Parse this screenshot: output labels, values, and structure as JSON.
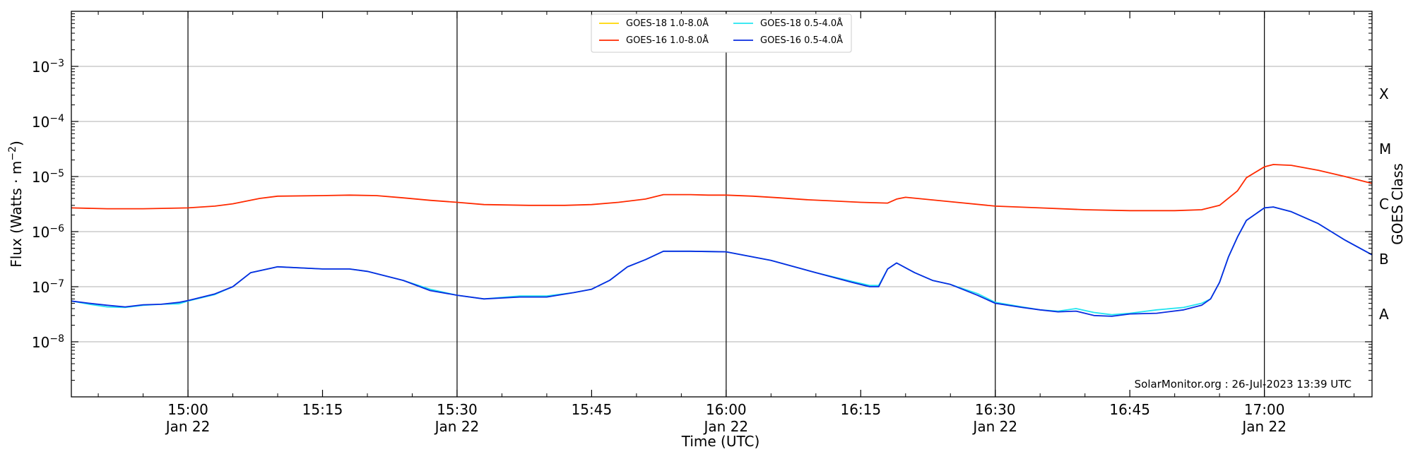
{
  "chart_data": {
    "type": "line",
    "xlabel": "Time (UTC)",
    "ylabel": "Flux (Watts · m^-2)",
    "right_label": "GOES Class",
    "xlim": [
      "14:47",
      "17:12"
    ],
    "ylim": [
      1e-09,
      0.01
    ],
    "yscale": "log",
    "grid": "horizontal",
    "legend_position": "top-center",
    "x_ticks": [
      {
        "time": "15:00",
        "date": "Jan 22"
      },
      {
        "time": "15:15",
        "date": ""
      },
      {
        "time": "15:30",
        "date": "Jan 22"
      },
      {
        "time": "15:45",
        "date": ""
      },
      {
        "time": "16:00",
        "date": "Jan 22"
      },
      {
        "time": "16:15",
        "date": ""
      },
      {
        "time": "16:30",
        "date": "Jan 22"
      },
      {
        "time": "16:45",
        "date": ""
      },
      {
        "time": "17:00",
        "date": "Jan 22"
      }
    ],
    "vertical_lines": [
      "15:00",
      "15:30",
      "16:00",
      "16:30",
      "17:00"
    ],
    "y_ticks": [
      {
        "value": 1e-08,
        "base": "10",
        "exp": "−8"
      },
      {
        "value": 1e-07,
        "base": "10",
        "exp": "−7"
      },
      {
        "value": 1e-06,
        "base": "10",
        "exp": "−6"
      },
      {
        "value": 1e-05,
        "base": "10",
        "exp": "−5"
      },
      {
        "value": 0.0001,
        "base": "10",
        "exp": "−4"
      },
      {
        "value": 0.001,
        "base": "10",
        "exp": "−3"
      }
    ],
    "class_labels": [
      {
        "label": "A",
        "value": 3.16e-08
      },
      {
        "label": "B",
        "value": 3.16e-07
      },
      {
        "label": "C",
        "value": 3.16e-06
      },
      {
        "label": "M",
        "value": 3.16e-05
      },
      {
        "label": "X",
        "value": 0.000316
      }
    ],
    "annotation": "SolarMonitor.org : 26-Jul-2023 13:39 UTC",
    "series": [
      {
        "name": "GOES-18 1.0-8.0Å",
        "color": "#FFD700",
        "points": []
      },
      {
        "name": "GOES-16 1.0-8.0Å",
        "color": "#FF2A00",
        "points": [
          [
            "14:47",
            2.7e-06
          ],
          [
            "14:51",
            2.6e-06
          ],
          [
            "14:55",
            2.6e-06
          ],
          [
            "15:00",
            2.7e-06
          ],
          [
            "15:03",
            2.9e-06
          ],
          [
            "15:05",
            3.2e-06
          ],
          [
            "15:08",
            4e-06
          ],
          [
            "15:10",
            4.4e-06
          ],
          [
            "15:15",
            4.5e-06
          ],
          [
            "15:18",
            4.6e-06
          ],
          [
            "15:21",
            4.5e-06
          ],
          [
            "15:24",
            4.1e-06
          ],
          [
            "15:27",
            3.7e-06
          ],
          [
            "15:30",
            3.4e-06
          ],
          [
            "15:33",
            3.1e-06
          ],
          [
            "15:38",
            3e-06
          ],
          [
            "15:42",
            3e-06
          ],
          [
            "15:45",
            3.1e-06
          ],
          [
            "15:48",
            3.4e-06
          ],
          [
            "15:51",
            3.9e-06
          ],
          [
            "15:53",
            4.7e-06
          ],
          [
            "15:56",
            4.7e-06
          ],
          [
            "15:58",
            4.6e-06
          ],
          [
            "16:00",
            4.6e-06
          ],
          [
            "16:03",
            4.4e-06
          ],
          [
            "16:06",
            4.1e-06
          ],
          [
            "16:09",
            3.8e-06
          ],
          [
            "16:12",
            3.6e-06
          ],
          [
            "16:15",
            3.4e-06
          ],
          [
            "16:18",
            3.3e-06
          ],
          [
            "16:19",
            3.9e-06
          ],
          [
            "16:20",
            4.2e-06
          ],
          [
            "16:22",
            3.9e-06
          ],
          [
            "16:25",
            3.5e-06
          ],
          [
            "16:30",
            2.9e-06
          ],
          [
            "16:35",
            2.7e-06
          ],
          [
            "16:40",
            2.5e-06
          ],
          [
            "16:45",
            2.4e-06
          ],
          [
            "16:50",
            2.4e-06
          ],
          [
            "16:53",
            2.5e-06
          ],
          [
            "16:55",
            3e-06
          ],
          [
            "16:57",
            5.5e-06
          ],
          [
            "16:58",
            9.5e-06
          ],
          [
            "17:00",
            1.5e-05
          ],
          [
            "17:01",
            1.65e-05
          ],
          [
            "17:03",
            1.6e-05
          ],
          [
            "17:06",
            1.3e-05
          ],
          [
            "17:09",
            1e-05
          ],
          [
            "17:12",
            7.5e-06
          ]
        ]
      },
      {
        "name": "GOES-18 0.5-4.0Å",
        "color": "#22E4F0",
        "points": [
          [
            "14:47",
            5.5e-08
          ],
          [
            "14:49",
            4.8e-08
          ],
          [
            "14:51",
            4.3e-08
          ],
          [
            "14:53",
            4.2e-08
          ],
          [
            "14:55",
            4.6e-08
          ],
          [
            "14:57",
            4.8e-08
          ],
          [
            "14:59",
            4.9e-08
          ],
          [
            "15:00",
            5.5e-08
          ],
          [
            "15:03",
            7.2e-08
          ],
          [
            "15:05",
            1e-07
          ],
          [
            "15:07",
            1.8e-07
          ],
          [
            "15:10",
            2.3e-07
          ],
          [
            "15:15",
            2.1e-07
          ],
          [
            "15:18",
            2.1e-07
          ],
          [
            "15:20",
            1.9e-07
          ],
          [
            "15:24",
            1.3e-07
          ],
          [
            "15:27",
            9e-08
          ],
          [
            "15:30",
            7e-08
          ],
          [
            "15:33",
            6e-08
          ],
          [
            "15:37",
            6.8e-08
          ],
          [
            "15:40",
            6.8e-08
          ],
          [
            "15:43",
            7.8e-08
          ],
          [
            "15:45",
            9e-08
          ],
          [
            "15:47",
            1.3e-07
          ],
          [
            "15:49",
            2.3e-07
          ],
          [
            "15:51",
            3.1e-07
          ],
          [
            "15:53",
            4.4e-07
          ],
          [
            "15:56",
            4.4e-07
          ],
          [
            "16:00",
            4.3e-07
          ],
          [
            "16:05",
            3e-07
          ],
          [
            "16:10",
            1.8e-07
          ],
          [
            "16:14",
            1.25e-07
          ],
          [
            "16:16",
            1.05e-07
          ],
          [
            "16:17",
            1.05e-07
          ],
          [
            "16:18",
            2.1e-07
          ],
          [
            "16:19",
            2.7e-07
          ],
          [
            "16:21",
            1.8e-07
          ],
          [
            "16:23",
            1.3e-07
          ],
          [
            "16:25",
            1.1e-07
          ],
          [
            "16:28",
            7.5e-08
          ],
          [
            "16:30",
            5.2e-08
          ],
          [
            "16:33",
            4.3e-08
          ],
          [
            "16:35",
            3.8e-08
          ],
          [
            "16:37",
            3.6e-08
          ],
          [
            "16:39",
            4e-08
          ],
          [
            "16:41",
            3.4e-08
          ],
          [
            "16:43",
            3.1e-08
          ],
          [
            "16:45",
            3.3e-08
          ],
          [
            "16:48",
            3.8e-08
          ],
          [
            "16:51",
            4.2e-08
          ],
          [
            "16:53",
            5e-08
          ],
          [
            "16:54",
            6e-08
          ],
          [
            "16:55",
            1.2e-07
          ],
          [
            "16:56",
            3.5e-07
          ],
          [
            "16:57",
            8e-07
          ],
          [
            "16:58",
            1.6e-06
          ],
          [
            "17:00",
            2.7e-06
          ],
          [
            "17:01",
            2.8e-06
          ],
          [
            "17:03",
            2.3e-06
          ],
          [
            "17:06",
            1.4e-06
          ],
          [
            "17:09",
            7e-07
          ],
          [
            "17:12",
            3.8e-07
          ]
        ]
      },
      {
        "name": "GOES-16 0.5-4.0Å",
        "color": "#0A2BE0",
        "points": [
          [
            "14:47",
            5.5e-08
          ],
          [
            "14:49",
            5e-08
          ],
          [
            "14:51",
            4.6e-08
          ],
          [
            "14:53",
            4.3e-08
          ],
          [
            "14:55",
            4.7e-08
          ],
          [
            "14:57",
            4.8e-08
          ],
          [
            "14:59",
            5.2e-08
          ],
          [
            "15:00",
            5.6e-08
          ],
          [
            "15:03",
            7.4e-08
          ],
          [
            "15:05",
            1e-07
          ],
          [
            "15:07",
            1.8e-07
          ],
          [
            "15:10",
            2.3e-07
          ],
          [
            "15:15",
            2.1e-07
          ],
          [
            "15:18",
            2.1e-07
          ],
          [
            "15:20",
            1.9e-07
          ],
          [
            "15:24",
            1.3e-07
          ],
          [
            "15:27",
            8.5e-08
          ],
          [
            "15:30",
            7e-08
          ],
          [
            "15:33",
            6e-08
          ],
          [
            "15:37",
            6.5e-08
          ],
          [
            "15:40",
            6.5e-08
          ],
          [
            "15:43",
            7.8e-08
          ],
          [
            "15:45",
            9e-08
          ],
          [
            "15:47",
            1.3e-07
          ],
          [
            "15:49",
            2.3e-07
          ],
          [
            "15:51",
            3.1e-07
          ],
          [
            "15:53",
            4.4e-07
          ],
          [
            "15:56",
            4.4e-07
          ],
          [
            "16:00",
            4.3e-07
          ],
          [
            "16:05",
            3e-07
          ],
          [
            "16:10",
            1.8e-07
          ],
          [
            "16:14",
            1.2e-07
          ],
          [
            "16:16",
            1e-07
          ],
          [
            "16:17",
            1e-07
          ],
          [
            "16:18",
            2.1e-07
          ],
          [
            "16:19",
            2.7e-07
          ],
          [
            "16:21",
            1.8e-07
          ],
          [
            "16:23",
            1.3e-07
          ],
          [
            "16:25",
            1.1e-07
          ],
          [
            "16:28",
            7e-08
          ],
          [
            "16:30",
            5e-08
          ],
          [
            "16:33",
            4.2e-08
          ],
          [
            "16:35",
            3.8e-08
          ],
          [
            "16:37",
            3.5e-08
          ],
          [
            "16:39",
            3.6e-08
          ],
          [
            "16:41",
            3e-08
          ],
          [
            "16:43",
            2.9e-08
          ],
          [
            "16:45",
            3.2e-08
          ],
          [
            "16:48",
            3.3e-08
          ],
          [
            "16:51",
            3.8e-08
          ],
          [
            "16:53",
            4.6e-08
          ],
          [
            "16:54",
            6e-08
          ],
          [
            "16:55",
            1.2e-07
          ],
          [
            "16:56",
            3.5e-07
          ],
          [
            "16:57",
            8e-07
          ],
          [
            "16:58",
            1.6e-06
          ],
          [
            "17:00",
            2.7e-06
          ],
          [
            "17:01",
            2.8e-06
          ],
          [
            "17:03",
            2.3e-06
          ],
          [
            "17:06",
            1.4e-06
          ],
          [
            "17:09",
            7e-07
          ],
          [
            "17:12",
            3.8e-07
          ]
        ]
      }
    ]
  }
}
